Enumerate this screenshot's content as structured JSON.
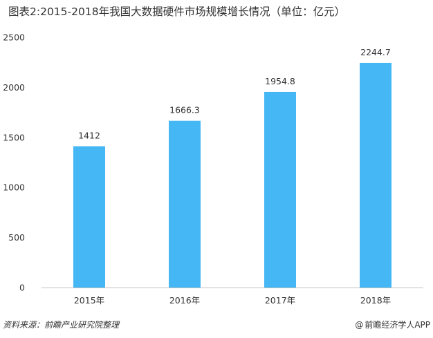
{
  "title": "图表2:2015-2018年我国大数据硬件市场规模增长情况（单位：亿元）",
  "chart_data": {
    "type": "bar",
    "categories": [
      "2015年",
      "2016年",
      "2017年",
      "2018年"
    ],
    "values": [
      1412,
      1666.3,
      1954.8,
      2244.7
    ],
    "value_labels": [
      "1412",
      "1666.3",
      "1954.8",
      "2244.7"
    ],
    "yticks": [
      0,
      500,
      1000,
      1500,
      2000,
      2500
    ],
    "ylim": [
      0,
      2500
    ],
    "xlabel": "",
    "ylabel": "",
    "grid": false,
    "bar_color": "#45b7f4"
  },
  "footer": {
    "source": "资料来源：前瞻产业研究院整理",
    "brand_at": "@",
    "brand": "前瞻经济学人APP"
  },
  "colors": {
    "bar": "#45b7f4",
    "axis": "#bfbfbf",
    "text": "#333333"
  }
}
